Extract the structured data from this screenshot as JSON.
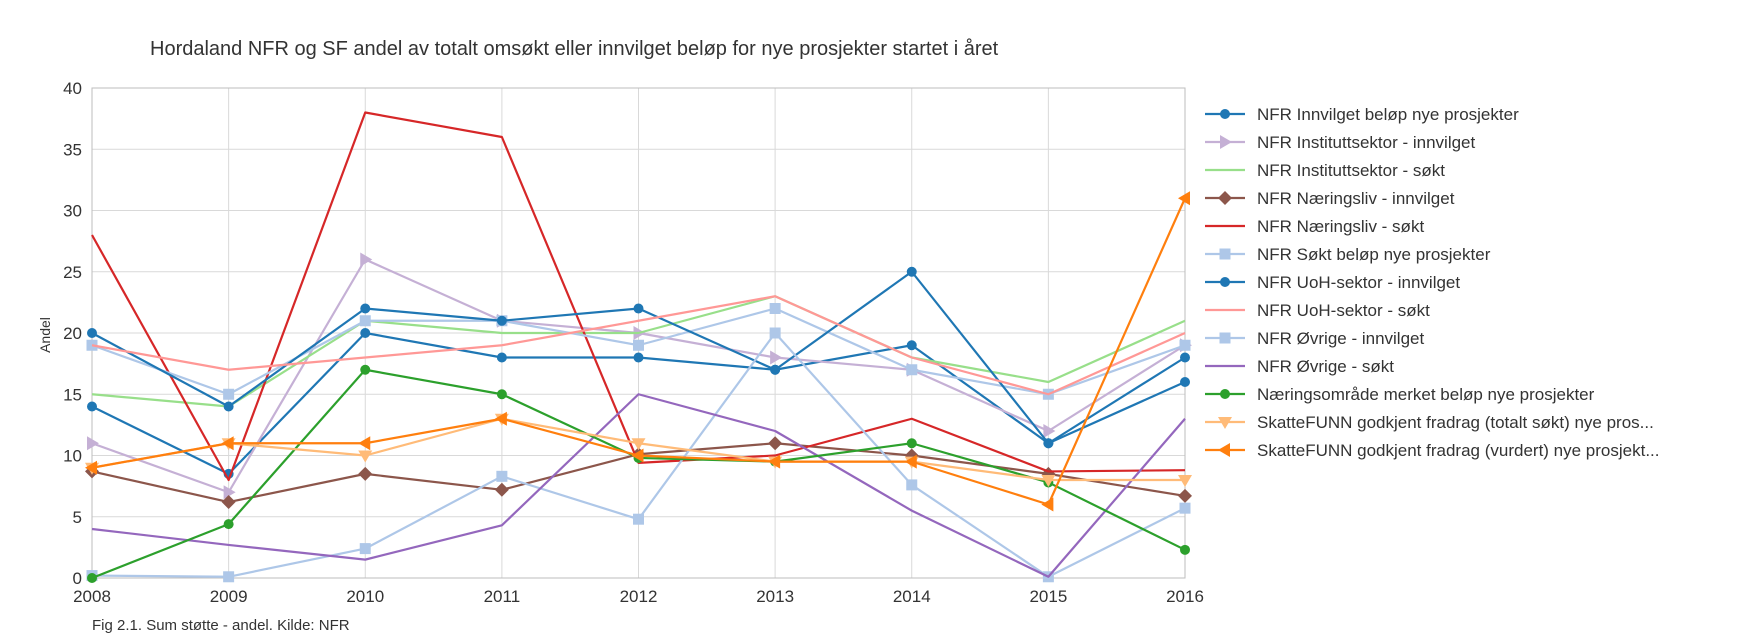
{
  "chart_data": {
    "type": "line",
    "title": "Hordaland NFR og SF andel av totalt omsøkt eller innvilget beløp for nye prosjekter startet i året",
    "xlabel": "",
    "ylabel": "Andel",
    "caption": "Fig 2.1. Sum støtte - andel. Kilde: NFR",
    "x": [
      2008,
      2009,
      2010,
      2011,
      2012,
      2013,
      2014,
      2015,
      2016
    ],
    "xlim": [
      2008,
      2016
    ],
    "ylim": [
      0,
      40
    ],
    "yticks": [
      0,
      5,
      10,
      15,
      20,
      25,
      30,
      35,
      40
    ],
    "grid": true,
    "legend_position": "right",
    "series": [
      {
        "name": "NFR Innvilget beløp nye prosjekter",
        "color": "#1f77b4",
        "marker": "circle",
        "values": [
          14,
          8.5,
          20,
          18,
          18,
          17,
          19,
          11,
          16
        ]
      },
      {
        "name": "NFR Instituttsektor - innvilget",
        "color": "#c5b0d5",
        "marker": "triangle-right",
        "values": [
          11,
          7,
          26,
          21,
          20,
          18,
          17,
          12,
          19
        ]
      },
      {
        "name": "NFR Instituttsektor - søkt",
        "color": "#98df8a",
        "marker": "none",
        "values": [
          15,
          14,
          21,
          20,
          20,
          23,
          18,
          16,
          21
        ]
      },
      {
        "name": "NFR Næringsliv - innvilget",
        "color": "#8c564b",
        "marker": "diamond",
        "values": [
          8.7,
          6.2,
          8.5,
          7.2,
          10.1,
          11,
          10,
          8.5,
          6.7
        ]
      },
      {
        "name": "NFR Næringsliv - søkt",
        "color": "#d62728",
        "marker": "none",
        "values": [
          28,
          8,
          38,
          36,
          9.4,
          10,
          13,
          8.7,
          8.8
        ]
      },
      {
        "name": "NFR Søkt beløp nye prosjekter",
        "color": "#aec7e8",
        "marker": "square",
        "values": [
          19,
          15,
          21,
          21,
          19,
          22,
          17,
          15,
          19
        ]
      },
      {
        "name": "NFR UoH-sektor - innvilget",
        "color": "#1f77b4",
        "marker": "circle",
        "values": [
          20,
          14,
          22,
          21,
          22,
          17,
          25,
          11,
          18
        ]
      },
      {
        "name": "NFR UoH-sektor - søkt",
        "color": "#ff9896",
        "marker": "none",
        "values": [
          19,
          17,
          18,
          19,
          21,
          23,
          18,
          15,
          20
        ]
      },
      {
        "name": "NFR Øvrige - innvilget",
        "color": "#aec7e8",
        "marker": "square",
        "values": [
          0.2,
          0.1,
          2.4,
          8.3,
          4.8,
          20,
          7.6,
          0.1,
          5.7
        ]
      },
      {
        "name": "NFR Øvrige - søkt",
        "color": "#9467bd",
        "marker": "none",
        "values": [
          4,
          2.7,
          1.5,
          4.3,
          15,
          12,
          5.5,
          0.1,
          13
        ]
      },
      {
        "name": "Næringsområde merket beløp nye prosjekter",
        "color": "#2ca02c",
        "marker": "circle",
        "values": [
          0,
          4.4,
          17,
          15,
          9.8,
          9.5,
          11,
          7.8,
          2.3
        ]
      },
      {
        "name": "SkatteFUNN godkjent fradrag (totalt søkt) nye pros...",
        "color": "#ffbb78",
        "marker": "triangle-down",
        "values": [
          9,
          11,
          10,
          13,
          11,
          9.5,
          9.5,
          8,
          8
        ]
      },
      {
        "name": "SkatteFUNN godkjent fradrag (vurdert) nye prosjekt...",
        "color": "#ff7f0e",
        "marker": "triangle-left",
        "values": [
          9,
          11,
          11,
          13,
          10,
          9.5,
          9.5,
          6,
          31
        ]
      }
    ]
  }
}
